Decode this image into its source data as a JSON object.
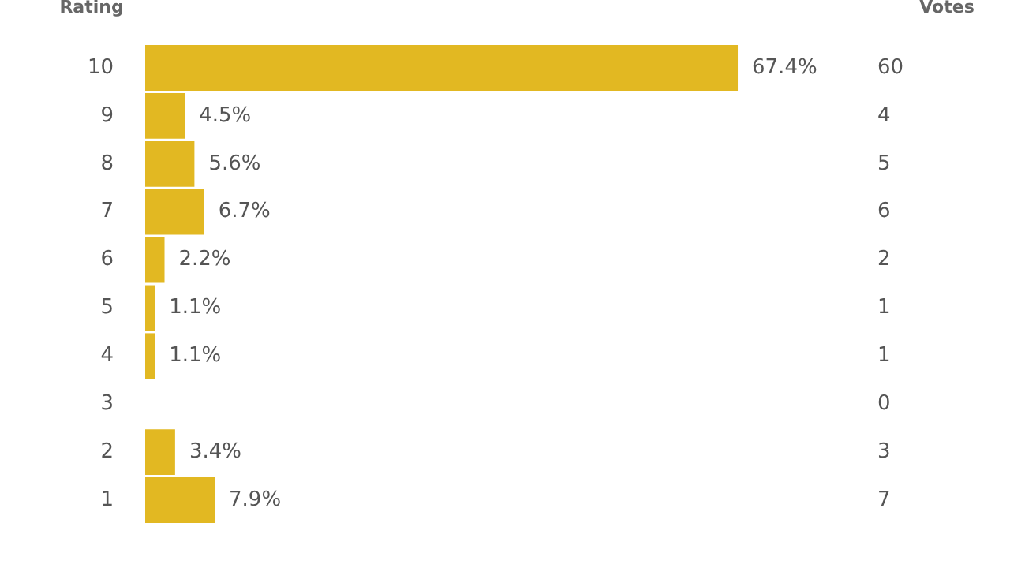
{
  "chart_data": {
    "type": "bar",
    "orientation": "horizontal",
    "ylabel": "Rating",
    "categories": [
      "10",
      "9",
      "8",
      "7",
      "6",
      "5",
      "4",
      "3",
      "2",
      "1"
    ],
    "values": [
      67.4,
      4.5,
      5.6,
      6.7,
      2.2,
      1.1,
      1.1,
      0,
      3.4,
      7.9
    ],
    "value_labels": [
      "67.4%",
      "4.5%",
      "5.6%",
      "6.7%",
      "2.2%",
      "1.1%",
      "1.1%",
      null,
      "3.4%",
      "7.9%"
    ],
    "color": "#e2b822",
    "tick_labels": "y",
    "grid": false,
    "legend": false,
    "annotations": [
      "Votes",
      "60",
      "4",
      "5",
      "6",
      "2",
      "1",
      "1",
      "0",
      "3",
      "7"
    ]
  }
}
